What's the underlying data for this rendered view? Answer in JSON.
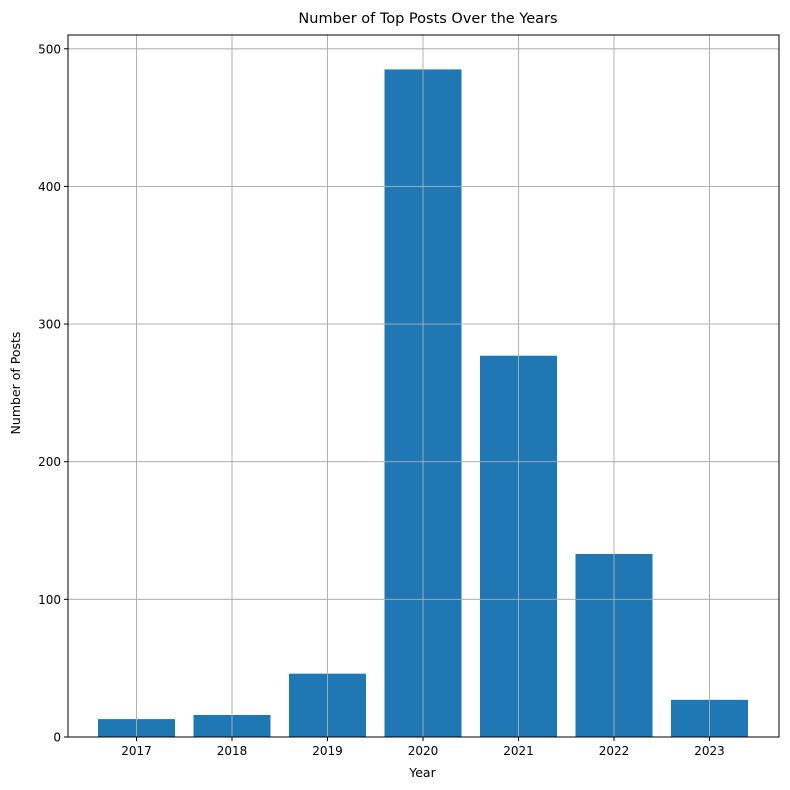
{
  "chart_data": {
    "type": "bar",
    "title": "Number of Top Posts Over the Years",
    "xlabel": "Year",
    "ylabel": "Number of Posts",
    "categories": [
      "2017",
      "2018",
      "2019",
      "2020",
      "2021",
      "2022",
      "2023"
    ],
    "values": [
      13,
      16,
      46,
      485,
      277,
      133,
      27
    ],
    "ylim": [
      0,
      510
    ],
    "yticks": [
      0,
      100,
      200,
      300,
      400,
      500
    ],
    "grid": true,
    "bar_color": "#1f77b4",
    "grid_color": "#b0b0b0"
  }
}
